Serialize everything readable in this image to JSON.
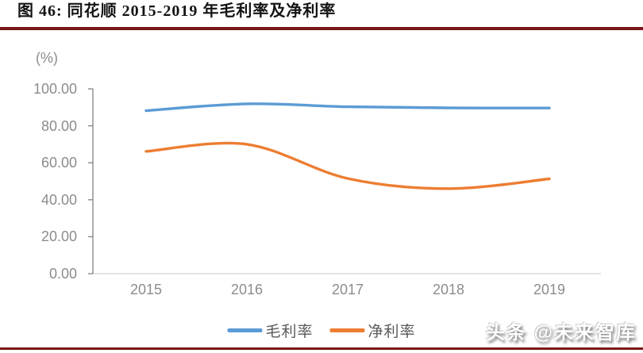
{
  "header": {
    "title": "图 46: 同花顺 2015-2019 年毛利率及净利率"
  },
  "chart_data": {
    "type": "line",
    "title": "同花顺 2015-2019 年毛利率及净利率",
    "y_unit": "(%)",
    "categories": [
      "2015",
      "2016",
      "2017",
      "2018",
      "2019"
    ],
    "series": [
      {
        "id": "gross-margin",
        "name": "毛利率",
        "color": "#5B9BD5",
        "values": [
          88.2,
          91.9,
          90.3,
          89.7,
          89.6
        ]
      },
      {
        "id": "net-margin",
        "name": "净利率",
        "color": "#ED7D31",
        "values": [
          66.2,
          70.0,
          51.5,
          46.0,
          51.3
        ]
      }
    ],
    "ylim": [
      0,
      100
    ],
    "y_tick_labels": [
      "100.00",
      "80.00",
      "60.00",
      "40.00",
      "20.00",
      "0.00"
    ],
    "grid": false,
    "smooth": true,
    "legend_position": "bottom"
  },
  "footer": {
    "watermark": "头条 @未来智库"
  },
  "colors": {
    "accent_rule": "#7a1518",
    "axis_line": "#8a8a8a",
    "baseline": "#d9d9d9",
    "axis_text": "#8c8c8c",
    "legend_text": "#595959"
  }
}
